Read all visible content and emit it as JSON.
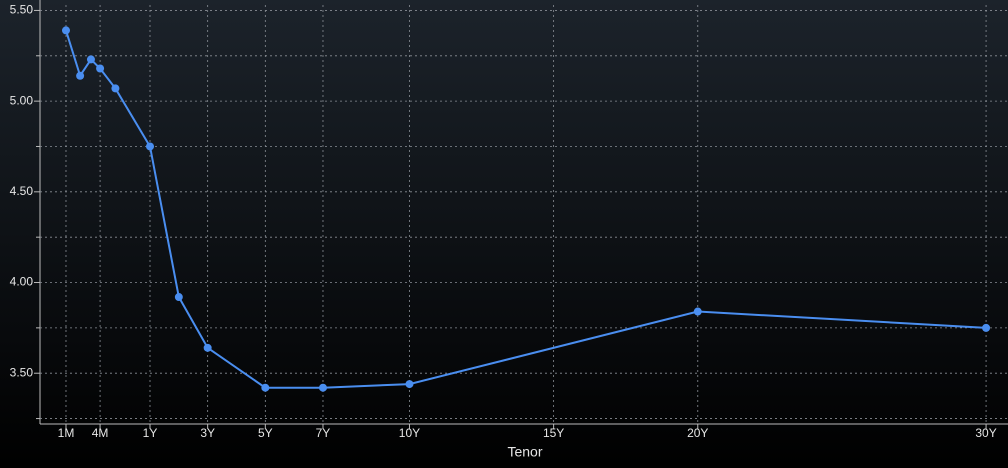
{
  "chart_data": {
    "type": "line",
    "x_label": "Tenor",
    "x": [
      0.0833,
      0.1667,
      0.25,
      0.3333,
      0.5,
      1,
      2,
      3,
      5,
      7,
      10,
      20,
      30
    ],
    "series": [
      {
        "color": "#4a8ef0",
        "values": [
          5.39,
          5.14,
          5.23,
          5.18,
          5.07,
          4.75,
          3.92,
          3.64,
          3.42,
          3.42,
          3.44,
          3.84,
          3.75
        ]
      }
    ],
    "xticks": [
      {
        "value": 0.0833,
        "label": "1M"
      },
      {
        "value": 0.3333,
        "label": "4M"
      },
      {
        "value": 1,
        "label": "1Y"
      },
      {
        "value": 3,
        "label": "3Y"
      },
      {
        "value": 5,
        "label": "5Y"
      },
      {
        "value": 7,
        "label": "7Y"
      },
      {
        "value": 10,
        "label": "10Y"
      },
      {
        "value": 15,
        "label": "15Y"
      },
      {
        "value": 20,
        "label": "20Y"
      },
      {
        "value": 30,
        "label": "30Y"
      }
    ],
    "ylim": [
      3.22,
      5.53
    ],
    "yticks": [
      {
        "value": 3.5,
        "label": "3.50"
      },
      {
        "value": 4,
        "label": "4.00"
      },
      {
        "value": 4.5,
        "label": "4.50"
      },
      {
        "value": 5,
        "label": "5.00"
      },
      {
        "value": 5.5,
        "label": "5.50"
      }
    ],
    "yminor": [
      3.25,
      3.75,
      4.25,
      4.75,
      5.25
    ],
    "grid": true
  }
}
